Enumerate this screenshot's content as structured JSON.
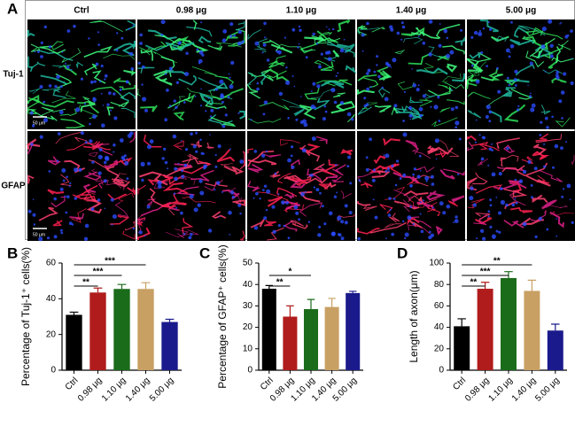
{
  "panel_a": {
    "label": "A",
    "columns": [
      "Ctrl",
      "0.98 μg",
      "1.10 μg",
      "1.40 μg",
      "5.00 μg"
    ],
    "rows": [
      "Tuj-1",
      "GFAP"
    ],
    "scale_bar": "50 μm"
  },
  "chart_data": [
    {
      "type": "bar",
      "panel_label": "B",
      "y_label": "Percentage of Tuj-1⁺ cells(%)",
      "categories": [
        "Ctrl",
        "0.98 μg",
        "1.10 μg",
        "1.40 μg",
        "5.00 μg"
      ],
      "values": [
        31,
        43.5,
        45.5,
        45.5,
        27
      ],
      "errors": [
        1.5,
        2.5,
        2.5,
        3.5,
        1.5
      ],
      "colors": [
        "#000000",
        "#b01c1c",
        "#1a6b1a",
        "#c8a064",
        "#1a1a8c"
      ],
      "ylim": [
        0,
        60
      ],
      "yticks": [
        0,
        20,
        40,
        60
      ],
      "annotations": [
        {
          "text": "**",
          "span": [
            "Ctrl",
            "0.98 μg"
          ]
        },
        {
          "text": "***",
          "span": [
            "Ctrl",
            "1.10 μg"
          ]
        },
        {
          "text": "***",
          "span": [
            "Ctrl",
            "1.40 μg"
          ]
        }
      ]
    },
    {
      "type": "bar",
      "panel_label": "C",
      "y_label": "Percentage of GFAP⁺ cells(%)",
      "categories": [
        "Ctrl",
        "0.98 μg",
        "1.10 μg",
        "1.40 μg",
        "5.00 μg"
      ],
      "values": [
        38,
        25,
        28.5,
        29.5,
        36
      ],
      "errors": [
        1.5,
        5,
        4.5,
        4,
        0.8
      ],
      "colors": [
        "#000000",
        "#b01c1c",
        "#1a6b1a",
        "#c8a064",
        "#1a1a8c"
      ],
      "ylim": [
        0,
        50
      ],
      "yticks": [
        0,
        10,
        20,
        30,
        40,
        50
      ],
      "annotations": [
        {
          "text": "**",
          "span": [
            "Ctrl",
            "0.98 μg"
          ]
        },
        {
          "text": "*",
          "span": [
            "Ctrl",
            "1.10 μg"
          ]
        }
      ]
    },
    {
      "type": "bar",
      "panel_label": "D",
      "y_label": "Length of axon(μm)",
      "categories": [
        "Ctrl",
        "0.98 μg",
        "1.10 μg",
        "1.40 μg",
        "5.00 μg"
      ],
      "values": [
        41,
        76,
        86,
        74,
        37
      ],
      "errors": [
        7,
        6,
        6,
        10,
        6
      ],
      "colors": [
        "#000000",
        "#b01c1c",
        "#1a6b1a",
        "#c8a064",
        "#1a1a8c"
      ],
      "ylim": [
        0,
        100
      ],
      "yticks": [
        0,
        20,
        40,
        60,
        80,
        100
      ],
      "annotations": [
        {
          "text": "**",
          "span": [
            "Ctrl",
            "0.98 μg"
          ]
        },
        {
          "text": "***",
          "span": [
            "Ctrl",
            "1.10 μg"
          ]
        },
        {
          "text": "**",
          "span": [
            "Ctrl",
            "1.40 μg"
          ]
        }
      ]
    }
  ]
}
